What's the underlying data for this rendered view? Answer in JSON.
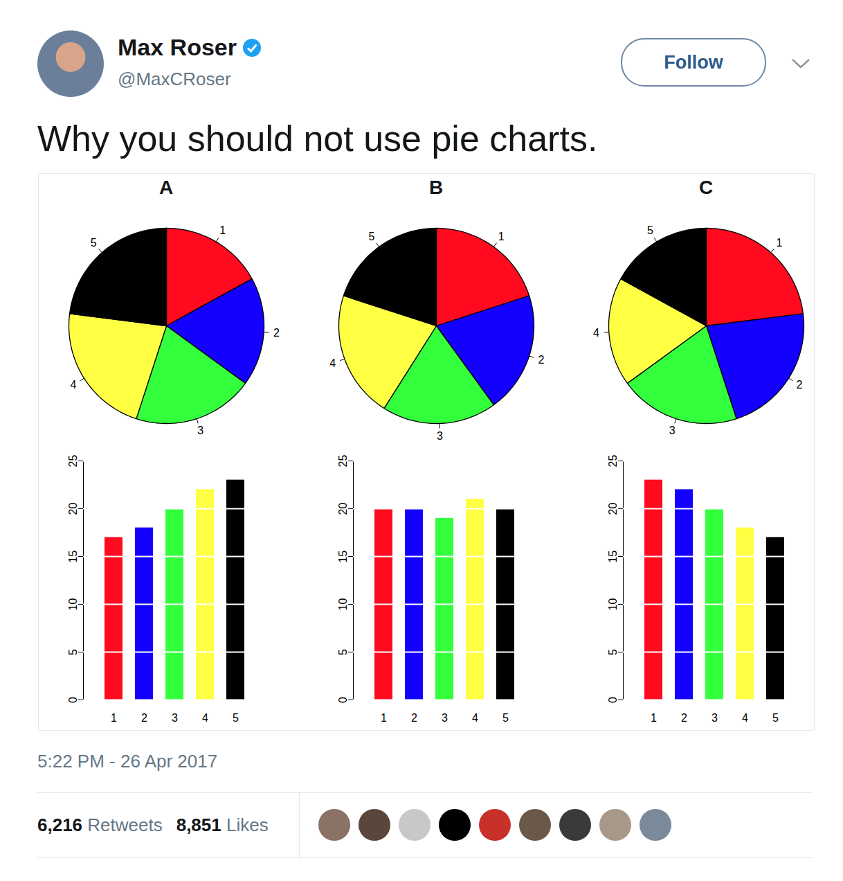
{
  "tweet": {
    "name": "Max Roser",
    "handle": "@MaxCRoser",
    "button": "Follow",
    "text": "Why you should not use pie charts.",
    "timestamp": "5:22 PM - 26 Apr 2017",
    "stats": [
      {
        "count": "6,216",
        "label": "Retweets"
      },
      {
        "count": "8,851",
        "label": "Likes"
      }
    ]
  },
  "chart_data": [
    {
      "type": "pie",
      "title": "A",
      "categories": [
        "1",
        "2",
        "3",
        "4",
        "5"
      ],
      "values": [
        17,
        18,
        20,
        22,
        23
      ],
      "colors": [
        "#ff0a1e",
        "#1400ff",
        "#33ff3c",
        "#ffff44",
        "#000000"
      ]
    },
    {
      "type": "pie",
      "title": "B",
      "categories": [
        "1",
        "2",
        "3",
        "4",
        "5"
      ],
      "values": [
        20,
        20,
        19,
        21,
        20
      ],
      "colors": [
        "#ff0a1e",
        "#1400ff",
        "#33ff3c",
        "#ffff44",
        "#000000"
      ]
    },
    {
      "type": "pie",
      "title": "C",
      "categories": [
        "1",
        "2",
        "3",
        "4",
        "5"
      ],
      "values": [
        23,
        22,
        20,
        18,
        17
      ],
      "colors": [
        "#ff0a1e",
        "#1400ff",
        "#33ff3c",
        "#ffff44",
        "#000000"
      ]
    },
    {
      "type": "bar",
      "categories": [
        "1",
        "2",
        "3",
        "4",
        "5"
      ],
      "values": [
        17,
        18,
        20,
        22,
        23
      ],
      "colors": [
        "#ff0a1e",
        "#1400ff",
        "#33ff3c",
        "#ffff44",
        "#000000"
      ],
      "ylim": [
        0,
        25
      ],
      "yticks": [
        0,
        5,
        10,
        15,
        20,
        25
      ],
      "grid": true
    },
    {
      "type": "bar",
      "categories": [
        "1",
        "2",
        "3",
        "4",
        "5"
      ],
      "values": [
        20,
        20,
        19,
        21,
        20
      ],
      "colors": [
        "#ff0a1e",
        "#1400ff",
        "#33ff3c",
        "#ffff44",
        "#000000"
      ],
      "ylim": [
        0,
        25
      ],
      "yticks": [
        0,
        5,
        10,
        15,
        20,
        25
      ],
      "grid": true
    },
    {
      "type": "bar",
      "categories": [
        "1",
        "2",
        "3",
        "4",
        "5"
      ],
      "values": [
        23,
        22,
        20,
        18,
        17
      ],
      "colors": [
        "#ff0a1e",
        "#1400ff",
        "#33ff3c",
        "#ffff44",
        "#000000"
      ],
      "ylim": [
        0,
        25
      ],
      "yticks": [
        0,
        5,
        10,
        15,
        20,
        25
      ],
      "grid": true
    }
  ]
}
